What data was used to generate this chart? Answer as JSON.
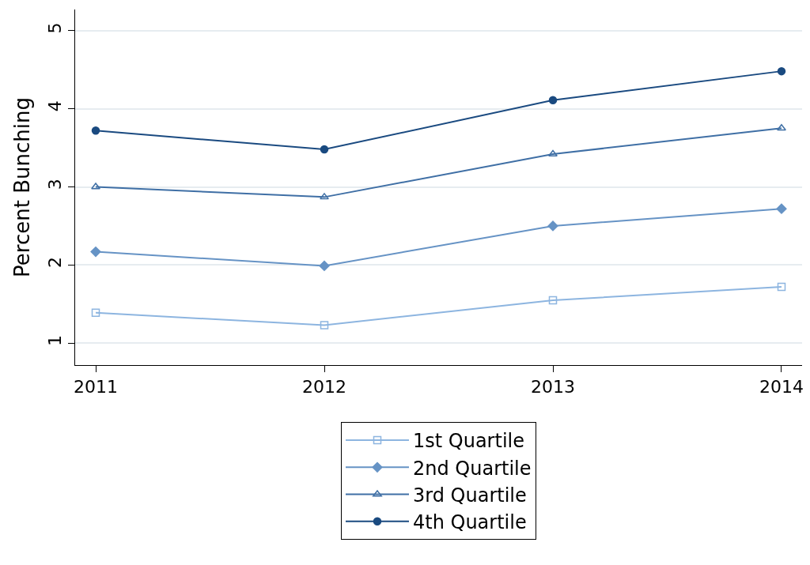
{
  "chart_data": {
    "type": "line",
    "ylabel": "Percent Bunching",
    "x": [
      2011,
      2012,
      2013,
      2014
    ],
    "xlim": [
      2010.91,
      2014.09
    ],
    "xticks": [
      2011,
      2012,
      2013,
      2014
    ],
    "ylim": [
      0.72,
      5.27
    ],
    "yticks": [
      1,
      2,
      3,
      4,
      5
    ],
    "grid": "y",
    "legend": "bottom",
    "line_style": "solid",
    "series": [
      {
        "name": "1st Quartile",
        "color": "#8db5e0",
        "marker": "square",
        "values": [
          1.39,
          1.23,
          1.55,
          1.72
        ]
      },
      {
        "name": "2nd Quartile",
        "color": "#6693c5",
        "marker": "diamond",
        "values": [
          2.17,
          1.99,
          2.5,
          2.72
        ]
      },
      {
        "name": "3rd Quartile",
        "color": "#3f6fa5",
        "marker": "triangle",
        "values": [
          3.0,
          2.87,
          3.42,
          3.75
        ]
      },
      {
        "name": "4th Quartile",
        "color": "#1a4a80",
        "marker": "circle",
        "values": [
          3.72,
          3.48,
          4.11,
          4.48
        ]
      }
    ]
  }
}
